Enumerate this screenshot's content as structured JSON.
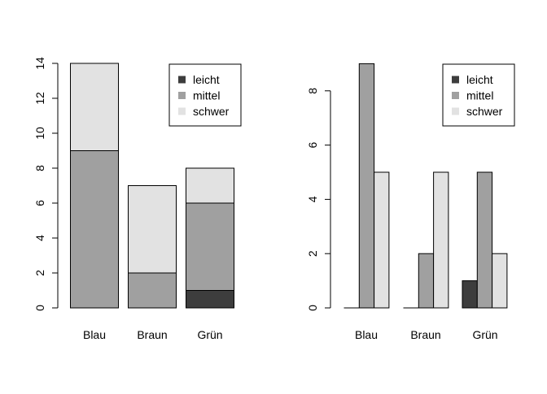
{
  "palette": {
    "leicht": "#3d3d3d",
    "mittel": "#a0a0a0",
    "schwer": "#e2e2e2"
  },
  "chart_data": [
    {
      "type": "bar",
      "stacked": true,
      "categories": [
        "Blau",
        "Braun",
        "Grün"
      ],
      "series": [
        {
          "name": "leicht",
          "values": [
            0,
            0,
            1
          ]
        },
        {
          "name": "mittel",
          "values": [
            9,
            2,
            5
          ]
        },
        {
          "name": "schwer",
          "values": [
            5,
            5,
            2
          ]
        }
      ],
      "yticks": [
        0,
        2,
        4,
        6,
        8,
        10,
        12,
        14
      ],
      "ylim": [
        0,
        14
      ],
      "legend_position": "top-right",
      "grid": false
    },
    {
      "type": "bar",
      "stacked": false,
      "categories": [
        "Blau",
        "Braun",
        "Grün"
      ],
      "series": [
        {
          "name": "leicht",
          "values": [
            0,
            0,
            1
          ]
        },
        {
          "name": "mittel",
          "values": [
            9,
            2,
            5
          ]
        },
        {
          "name": "schwer",
          "values": [
            5,
            5,
            2
          ]
        }
      ],
      "yticks": [
        0,
        2,
        4,
        6,
        8
      ],
      "ylim": [
        0,
        9
      ],
      "legend_position": "top-right",
      "grid": false
    }
  ]
}
